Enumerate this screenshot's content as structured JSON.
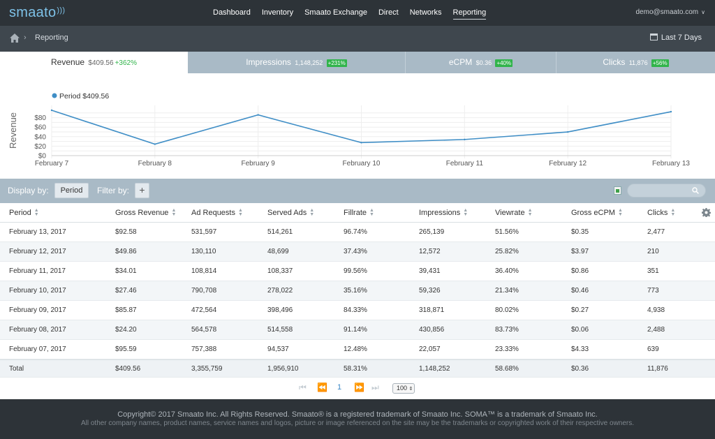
{
  "brand": {
    "logo": "smaato"
  },
  "nav": {
    "items": [
      "Dashboard",
      "Inventory",
      "Smaato Exchange",
      "Direct",
      "Networks",
      "Reporting"
    ],
    "active": "Reporting",
    "user": "demo@smaato.com"
  },
  "breadcrumb": {
    "current": "Reporting"
  },
  "daterange": {
    "label": "Last 7 Days"
  },
  "tabs": [
    {
      "label": "Revenue",
      "value": "$409.56",
      "change": "+362%"
    },
    {
      "label": "Impressions",
      "value": "1,148,252",
      "change": "+231%"
    },
    {
      "label": "eCPM",
      "value": "$0.36",
      "change": "+40%"
    },
    {
      "label": "Clicks",
      "value": "11,876",
      "change": "+56%"
    }
  ],
  "chart_data": {
    "type": "line",
    "ylabel": "Revenue",
    "legend": "Period $409.56",
    "categories": [
      "February 7",
      "February 8",
      "February 9",
      "February 10",
      "February 11",
      "February 12",
      "February 13"
    ],
    "series": [
      {
        "name": "Period $409.56",
        "values": [
          95.59,
          24.2,
          85.87,
          27.46,
          34.01,
          49.86,
          92.58
        ]
      }
    ],
    "yticks": [
      "$0",
      "$20",
      "$40",
      "$60",
      "$80"
    ],
    "ylim": [
      0,
      100
    ],
    "color": "#3f8ec6",
    "grid": true
  },
  "toolbar": {
    "display_by": "Display by:",
    "period_button": "Period",
    "filter_by": "Filter by:",
    "add_filter": "+"
  },
  "table": {
    "headers": [
      "Period",
      "Gross Revenue",
      "Ad Requests",
      "Served Ads",
      "Fillrate",
      "Impressions",
      "Viewrate",
      "Gross eCPM",
      "Clicks"
    ],
    "rows": [
      [
        "February 13, 2017",
        "$92.58",
        "531,597",
        "514,261",
        "96.74%",
        "265,139",
        "51.56%",
        "$0.35",
        "2,477"
      ],
      [
        "February 12, 2017",
        "$49.86",
        "130,110",
        "48,699",
        "37.43%",
        "12,572",
        "25.82%",
        "$3.97",
        "210"
      ],
      [
        "February 11, 2017",
        "$34.01",
        "108,814",
        "108,337",
        "99.56%",
        "39,431",
        "36.40%",
        "$0.86",
        "351"
      ],
      [
        "February 10, 2017",
        "$27.46",
        "790,708",
        "278,022",
        "35.16%",
        "59,326",
        "21.34%",
        "$0.46",
        "773"
      ],
      [
        "February 09, 2017",
        "$85.87",
        "472,564",
        "398,496",
        "84.33%",
        "318,871",
        "80.02%",
        "$0.27",
        "4,938"
      ],
      [
        "February 08, 2017",
        "$24.20",
        "564,578",
        "514,558",
        "91.14%",
        "430,856",
        "83.73%",
        "$0.06",
        "2,488"
      ],
      [
        "February 07, 2017",
        "$95.59",
        "757,388",
        "94,537",
        "12.48%",
        "22,057",
        "23.33%",
        "$4.33",
        "639"
      ]
    ],
    "total": [
      "Total",
      "$409.56",
      "3,355,759",
      "1,956,910",
      "58.31%",
      "1,148,252",
      "58.68%",
      "$0.36",
      "11,876"
    ]
  },
  "pager": {
    "current_page": "1",
    "page_size": "100"
  },
  "footer": {
    "line1": "Copyright© 2017 Smaato Inc. All Rights Reserved. Smaato® is a registered trademark of Smaato Inc. SOMA™ is a trademark of Smaato Inc.",
    "line2": "All other company names, product names, service names and logos, picture or image referenced on the site may be the trademarks or copyrighted work of their respective owners."
  }
}
